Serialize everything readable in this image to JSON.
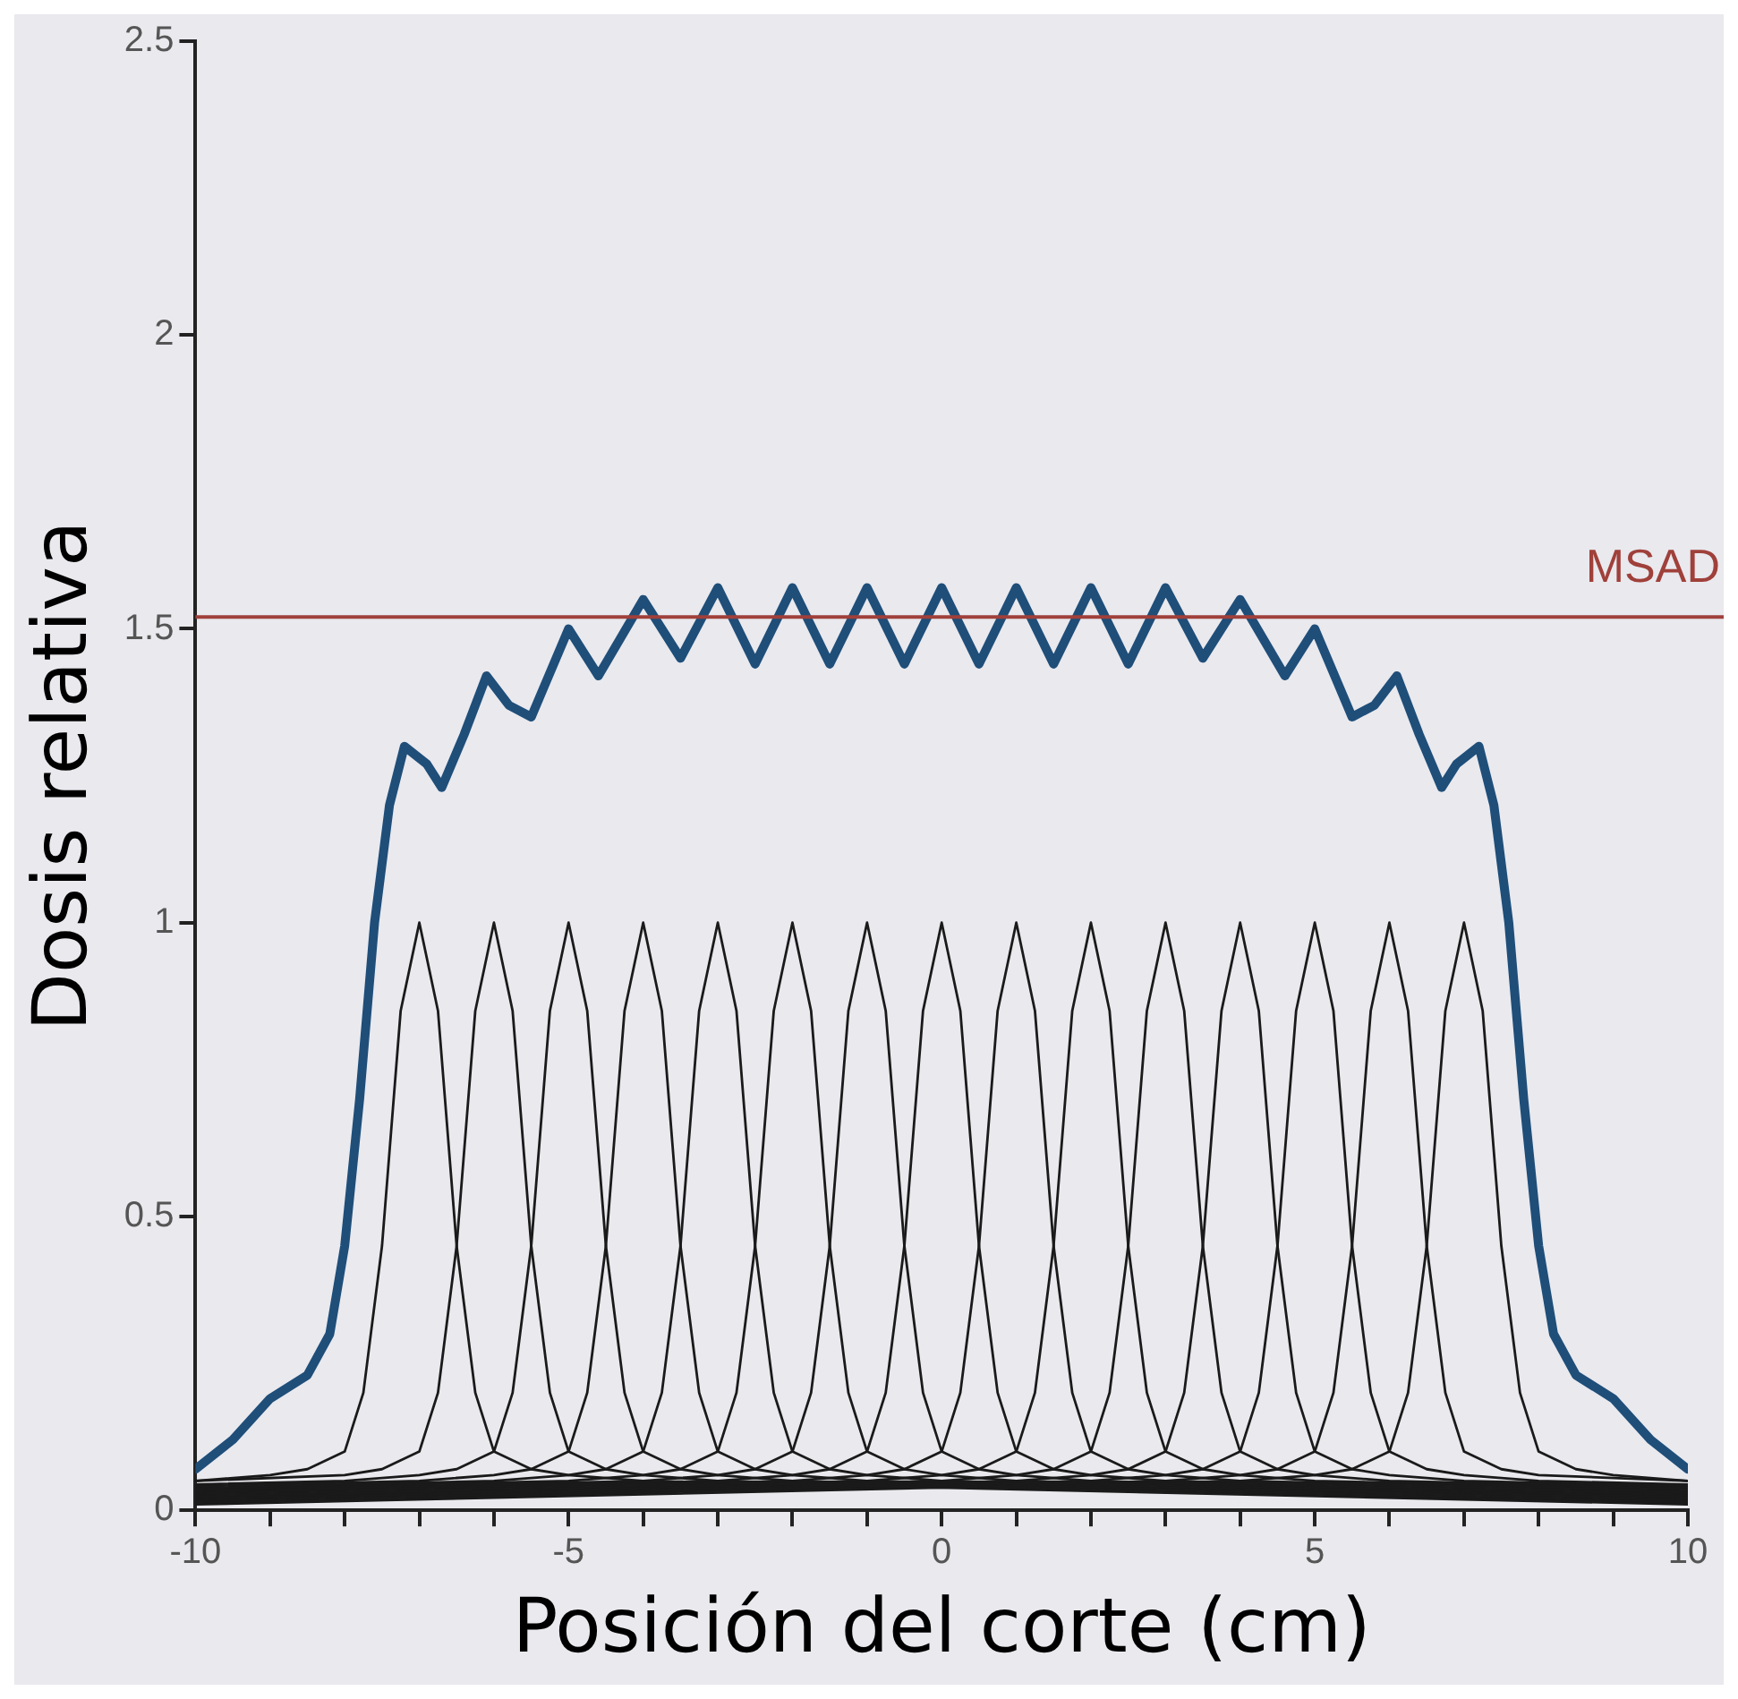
{
  "chart_data": {
    "type": "line",
    "xlabel": "Posición del corte (cm)",
    "ylabel": "Dosis relativa",
    "xlim": [
      -10,
      10
    ],
    "ylim": [
      0,
      2.5
    ],
    "xticks": [
      -10,
      {
        "value": -9,
        "label": null
      },
      {
        "value": -8,
        "label": null
      },
      {
        "value": -7,
        "label": null
      },
      {
        "value": -6,
        "label": null
      },
      -5,
      {
        "value": -4,
        "label": null
      },
      {
        "value": -3,
        "label": null
      },
      {
        "value": -2,
        "label": null
      },
      {
        "value": -1,
        "label": null
      },
      0,
      {
        "value": 1,
        "label": null
      },
      {
        "value": 2,
        "label": null
      },
      {
        "value": 3,
        "label": null
      },
      {
        "value": 4,
        "label": null
      },
      5,
      {
        "value": 6,
        "label": null
      },
      {
        "value": 7,
        "label": null
      },
      {
        "value": 8,
        "label": null
      },
      {
        "value": 9,
        "label": null
      },
      10
    ],
    "yticks": [
      0,
      0.5,
      1,
      1.5,
      2,
      2.5
    ],
    "grid": false,
    "legend": false,
    "marker": "none",
    "line_style": "solid",
    "ref_lines": [
      {
        "axis": "y",
        "value": 1.52,
        "label": "MSAD",
        "color": "#a0403a"
      }
    ],
    "series": [
      {
        "color": "#1a1a1a",
        "x": [
          -10,
          -9,
          -8.5,
          -8,
          -7.75,
          -7.5,
          -7.25,
          -7,
          -6.75,
          -6.5,
          -6.25,
          -6,
          -5.5,
          -5,
          -4,
          10
        ],
        "values": [
          0.05,
          0.06,
          0.07,
          0.1,
          0.2,
          0.45,
          0.85,
          1,
          0.85,
          0.45,
          0.2,
          0.1,
          0.07,
          0.06,
          0.05,
          0.01
        ]
      },
      {
        "color": "#1a1a1a",
        "x": [
          -10,
          -8,
          -7.5,
          -7,
          -6.75,
          -6.5,
          -6.25,
          -6,
          -5.75,
          -5.5,
          -5.25,
          -5,
          -4.5,
          -4,
          -3,
          10
        ],
        "values": [
          0.05,
          0.06,
          0.07,
          0.1,
          0.2,
          0.45,
          0.85,
          1,
          0.85,
          0.45,
          0.2,
          0.1,
          0.07,
          0.06,
          0.05,
          0.013
        ]
      },
      {
        "color": "#1a1a1a",
        "x": [
          -10,
          -8,
          -7,
          -6.5,
          -6,
          -5.75,
          -5.5,
          -5.25,
          -5,
          -4.75,
          -4.5,
          -4.25,
          -4,
          -3.5,
          -3,
          -2,
          10
        ],
        "values": [
          0.044,
          0.05,
          0.06,
          0.07,
          0.1,
          0.2,
          0.45,
          0.85,
          1,
          0.85,
          0.45,
          0.2,
          0.1,
          0.07,
          0.06,
          0.05,
          0.016
        ]
      },
      {
        "color": "#1a1a1a",
        "x": [
          -10,
          -7,
          -6,
          -5.5,
          -5,
          -4.75,
          -4.5,
          -4.25,
          -4,
          -3.75,
          -3.5,
          -3.25,
          -3,
          -2.5,
          -2,
          -1,
          10
        ],
        "values": [
          0.041,
          0.05,
          0.06,
          0.07,
          0.1,
          0.2,
          0.45,
          0.85,
          1,
          0.85,
          0.45,
          0.2,
          0.1,
          0.07,
          0.06,
          0.05,
          0.019
        ]
      },
      {
        "color": "#1a1a1a",
        "x": [
          -10,
          -6,
          -5,
          -4.5,
          -4,
          -3.75,
          -3.5,
          -3.25,
          -3,
          -2.75,
          -2.5,
          -2.25,
          -2,
          -1.5,
          -1,
          0,
          10
        ],
        "values": [
          0.038,
          0.05,
          0.06,
          0.07,
          0.1,
          0.2,
          0.45,
          0.85,
          1,
          0.85,
          0.45,
          0.2,
          0.1,
          0.07,
          0.06,
          0.05,
          0.022
        ]
      },
      {
        "color": "#1a1a1a",
        "x": [
          -10,
          -5,
          -4,
          -3.5,
          -3,
          -2.75,
          -2.5,
          -2.25,
          -2,
          -1.75,
          -1.5,
          -1.25,
          -1,
          -0.5,
          0,
          1,
          10
        ],
        "values": [
          0.036,
          0.05,
          0.06,
          0.07,
          0.1,
          0.2,
          0.45,
          0.85,
          1,
          0.85,
          0.45,
          0.2,
          0.1,
          0.07,
          0.06,
          0.05,
          0.024
        ]
      },
      {
        "color": "#1a1a1a",
        "x": [
          -10,
          -4,
          -3,
          -2.5,
          -2,
          -1.75,
          -1.5,
          -1.25,
          -1,
          -0.75,
          -0.5,
          -0.25,
          0,
          0.5,
          1,
          2,
          10
        ],
        "values": [
          0.033,
          0.05,
          0.06,
          0.07,
          0.1,
          0.2,
          0.45,
          0.85,
          1,
          0.85,
          0.45,
          0.2,
          0.1,
          0.07,
          0.06,
          0.05,
          0.027
        ]
      },
      {
        "color": "#1a1a1a",
        "x": [
          -10,
          -3,
          -2,
          -1.5,
          -1,
          -0.75,
          -0.5,
          -0.25,
          0,
          0.25,
          0.5,
          0.75,
          1,
          1.5,
          2,
          3,
          10
        ],
        "values": [
          0.03,
          0.05,
          0.06,
          0.07,
          0.1,
          0.2,
          0.45,
          0.85,
          1,
          0.85,
          0.45,
          0.2,
          0.1,
          0.07,
          0.06,
          0.05,
          0.03
        ]
      },
      {
        "color": "#1a1a1a",
        "x": [
          -10,
          -2,
          -1,
          -0.5,
          0,
          0.25,
          0.5,
          0.75,
          1,
          1.25,
          1.5,
          1.75,
          2,
          2.5,
          3,
          4,
          10
        ],
        "values": [
          0.027,
          0.05,
          0.06,
          0.07,
          0.1,
          0.2,
          0.45,
          0.85,
          1,
          0.85,
          0.45,
          0.2,
          0.1,
          0.07,
          0.06,
          0.05,
          0.033
        ]
      },
      {
        "color": "#1a1a1a",
        "x": [
          -10,
          -1,
          0,
          0.5,
          1,
          1.25,
          1.5,
          1.75,
          2,
          2.25,
          2.5,
          2.75,
          3,
          3.5,
          4,
          5,
          10
        ],
        "values": [
          0.024,
          0.05,
          0.06,
          0.07,
          0.1,
          0.2,
          0.45,
          0.85,
          1,
          0.85,
          0.45,
          0.2,
          0.1,
          0.07,
          0.06,
          0.05,
          0.036
        ]
      },
      {
        "color": "#1a1a1a",
        "x": [
          -10,
          0,
          1,
          1.5,
          2,
          2.25,
          2.5,
          2.75,
          3,
          3.25,
          3.5,
          3.75,
          4,
          4.5,
          5,
          6,
          10
        ],
        "values": [
          0.022,
          0.05,
          0.06,
          0.07,
          0.1,
          0.2,
          0.45,
          0.85,
          1,
          0.85,
          0.45,
          0.2,
          0.1,
          0.07,
          0.06,
          0.05,
          0.038
        ]
      },
      {
        "color": "#1a1a1a",
        "x": [
          -10,
          1,
          2,
          2.5,
          3,
          3.25,
          3.5,
          3.75,
          4,
          4.25,
          4.5,
          4.75,
          5,
          5.5,
          6,
          7,
          10
        ],
        "values": [
          0.019,
          0.05,
          0.06,
          0.07,
          0.1,
          0.2,
          0.45,
          0.85,
          1,
          0.85,
          0.45,
          0.2,
          0.1,
          0.07,
          0.06,
          0.05,
          0.041
        ]
      },
      {
        "color": "#1a1a1a",
        "x": [
          -10,
          2,
          3,
          3.5,
          4,
          4.25,
          4.5,
          4.75,
          5,
          5.25,
          5.5,
          5.75,
          6,
          6.5,
          7,
          8,
          10
        ],
        "values": [
          0.016,
          0.05,
          0.06,
          0.07,
          0.1,
          0.2,
          0.45,
          0.85,
          1,
          0.85,
          0.45,
          0.2,
          0.1,
          0.07,
          0.06,
          0.05,
          0.044
        ]
      },
      {
        "color": "#1a1a1a",
        "x": [
          -10,
          3,
          4,
          4.5,
          5,
          5.25,
          5.5,
          5.75,
          6,
          6.25,
          6.5,
          6.75,
          7,
          7.5,
          8,
          10
        ],
        "values": [
          0.013,
          0.05,
          0.06,
          0.07,
          0.1,
          0.2,
          0.45,
          0.85,
          1,
          0.85,
          0.45,
          0.2,
          0.1,
          0.07,
          0.06,
          0.05
        ]
      },
      {
        "color": "#1a1a1a",
        "x": [
          -10,
          4,
          5,
          5.5,
          6,
          6.25,
          6.5,
          6.75,
          7,
          7.25,
          7.5,
          7.75,
          8,
          8.5,
          9,
          10
        ],
        "values": [
          0.01,
          0.05,
          0.06,
          0.07,
          0.1,
          0.2,
          0.45,
          0.85,
          1,
          0.85,
          0.45,
          0.2,
          0.1,
          0.07,
          0.06,
          0.05
        ]
      },
      {
        "color": "#1f4e79",
        "x": [
          -10,
          -9.5,
          -9,
          -8.5,
          -8.2,
          -8,
          -7.8,
          -7.6,
          -7.4,
          -7.2,
          -6.9,
          -6.7,
          -6.4,
          -6.1,
          -5.8,
          -5.5,
          -5,
          -4.6,
          -4,
          -3.5,
          -3,
          -2.5,
          -2,
          -1.5,
          -1,
          -0.5,
          0,
          0.5,
          1,
          1.5,
          2,
          2.5,
          3,
          3.5,
          4,
          4.6,
          5,
          5.5,
          5.8,
          6.1,
          6.4,
          6.7,
          6.9,
          7.2,
          7.4,
          7.6,
          7.8,
          8,
          8.2,
          8.5,
          9,
          9.5,
          10
        ],
        "values": [
          0.07,
          0.12,
          0.19,
          0.23,
          0.3,
          0.45,
          0.7,
          1.0,
          1.2,
          1.3,
          1.27,
          1.23,
          1.32,
          1.42,
          1.37,
          1.35,
          1.5,
          1.42,
          1.55,
          1.45,
          1.57,
          1.44,
          1.57,
          1.44,
          1.57,
          1.44,
          1.57,
          1.44,
          1.57,
          1.44,
          1.57,
          1.44,
          1.57,
          1.45,
          1.55,
          1.42,
          1.5,
          1.35,
          1.37,
          1.42,
          1.32,
          1.23,
          1.27,
          1.3,
          1.2,
          1.0,
          0.7,
          0.45,
          0.3,
          0.23,
          0.19,
          0.12,
          0.07
        ]
      }
    ]
  }
}
